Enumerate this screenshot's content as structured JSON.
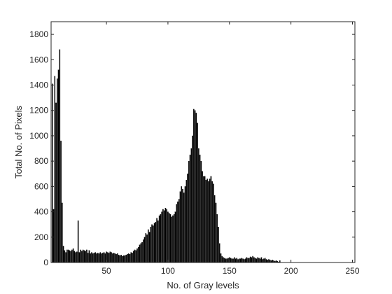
{
  "chart_data": {
    "type": "bar",
    "title": "",
    "xlabel": "No. of Gray levels",
    "ylabel": "Total No. of Pixels",
    "xlim": [
      5,
      252
    ],
    "ylim": [
      0,
      1900
    ],
    "xticks": [
      50,
      100,
      150,
      200,
      250
    ],
    "yticks": [
      0,
      200,
      400,
      600,
      800,
      1000,
      1200,
      1400,
      1600,
      1800
    ],
    "grid": false,
    "legend": "none",
    "bar_color": "#000000",
    "x_start": 6,
    "values": [
      1410,
      420,
      1470,
      1260,
      1450,
      1520,
      1680,
      960,
      470,
      130,
      95,
      80,
      100,
      100,
      95,
      90,
      100,
      110,
      90,
      80,
      85,
      330,
      80,
      100,
      90,
      100,
      95,
      90,
      100,
      75,
      95,
      70,
      80,
      70,
      75,
      80,
      70,
      75,
      70,
      80,
      70,
      75,
      80,
      70,
      85,
      80,
      75,
      85,
      80,
      70,
      75,
      70,
      65,
      70,
      60,
      55,
      60,
      50,
      55,
      55,
      60,
      65,
      70,
      65,
      80,
      75,
      90,
      100,
      95,
      110,
      120,
      140,
      150,
      160,
      180,
      200,
      230,
      220,
      260,
      240,
      280,
      300,
      290,
      310,
      320,
      350,
      330,
      370,
      380,
      400,
      420,
      410,
      430,
      420,
      400,
      390,
      380,
      360,
      370,
      380,
      400,
      460,
      480,
      500,
      560,
      600,
      580,
      550,
      600,
      650,
      700,
      800,
      850,
      900,
      1000,
      1210,
      1200,
      1180,
      1100,
      900,
      850,
      800,
      720,
      680,
      680,
      650,
      660,
      640,
      660,
      680,
      640,
      620,
      530,
      470,
      380,
      280,
      150,
      70,
      50,
      40,
      35,
      30,
      30,
      35,
      40,
      35,
      30,
      30,
      40,
      30,
      35,
      25,
      30,
      30,
      35,
      30,
      25,
      30,
      40,
      35,
      35,
      45,
      40,
      50,
      40,
      35,
      30,
      40,
      35,
      30,
      40,
      25,
      30,
      35,
      25,
      20,
      25,
      20,
      15,
      20,
      15,
      10,
      15,
      10,
      5,
      15
    ]
  }
}
